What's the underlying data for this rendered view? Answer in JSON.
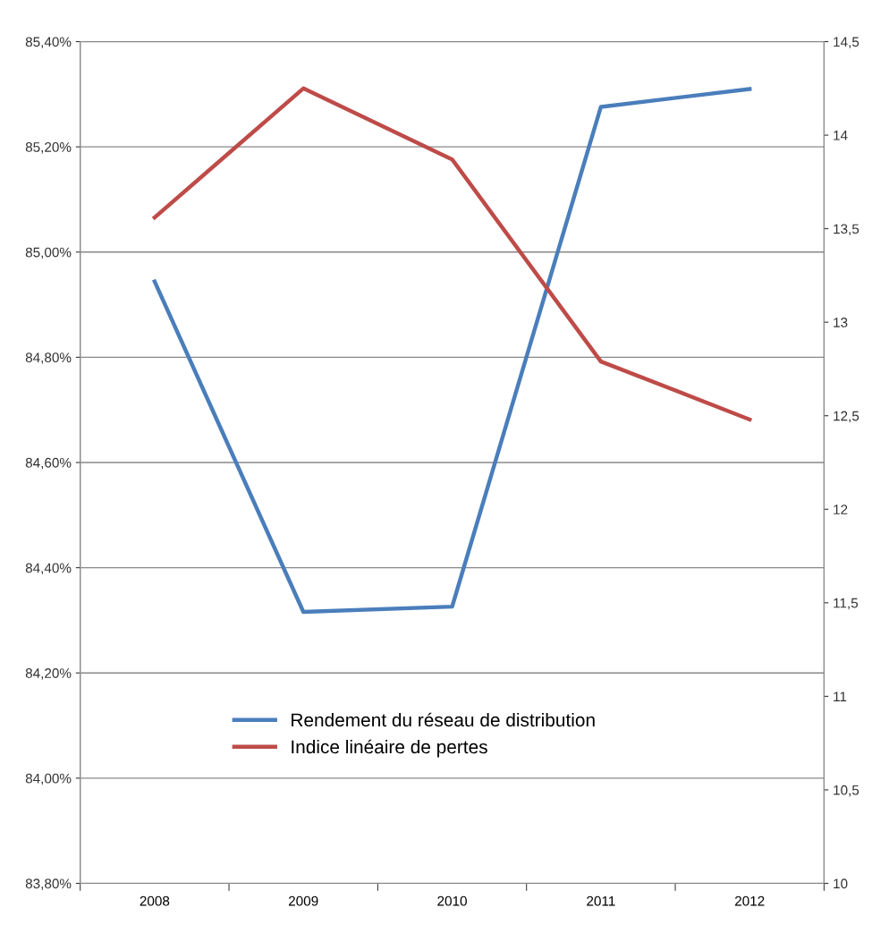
{
  "chart_data": {
    "type": "line",
    "categories": [
      "2008",
      "2009",
      "2010",
      "2011",
      "2012"
    ],
    "series": [
      {
        "name": "Rendement du réseau de distribution",
        "color": "#4a7ebb",
        "values": [
          84.944,
          84.316,
          84.326,
          85.276,
          85.31
        ]
      },
      {
        "name": "Indice linéaire de pertes",
        "color": "#be4b48",
        "values": [
          13.56,
          14.25,
          13.87,
          12.79,
          12.48
        ],
        "axis": "y2"
      }
    ],
    "ylim": [
      83.8,
      85.4
    ],
    "yticks": [
      {
        "value": 83.8,
        "label": "83,80%"
      },
      {
        "value": 84.0,
        "label": "84,00%"
      },
      {
        "value": 84.2,
        "label": "84,20%"
      },
      {
        "value": 84.4,
        "label": "84,40%"
      },
      {
        "value": 84.6,
        "label": "84,60%"
      },
      {
        "value": 84.8,
        "label": "84,80%"
      },
      {
        "value": 85.0,
        "label": "85,00%"
      },
      {
        "value": 85.2,
        "label": "85,20%"
      },
      {
        "value": 85.4,
        "label": "85,40%"
      }
    ],
    "y2lim": [
      10,
      14.5
    ],
    "y2ticks": [
      10,
      {
        "value": 10.5,
        "label": "10,5"
      },
      11,
      {
        "value": 11.5,
        "label": "11,5"
      },
      12,
      {
        "value": 12.5,
        "label": "12,5"
      },
      13,
      {
        "value": 13.5,
        "label": "13,5"
      },
      14,
      {
        "value": 14.5,
        "label": "14,5"
      }
    ],
    "grid": "y",
    "legend": "bottom",
    "marker": "none",
    "line_style": "solid"
  }
}
